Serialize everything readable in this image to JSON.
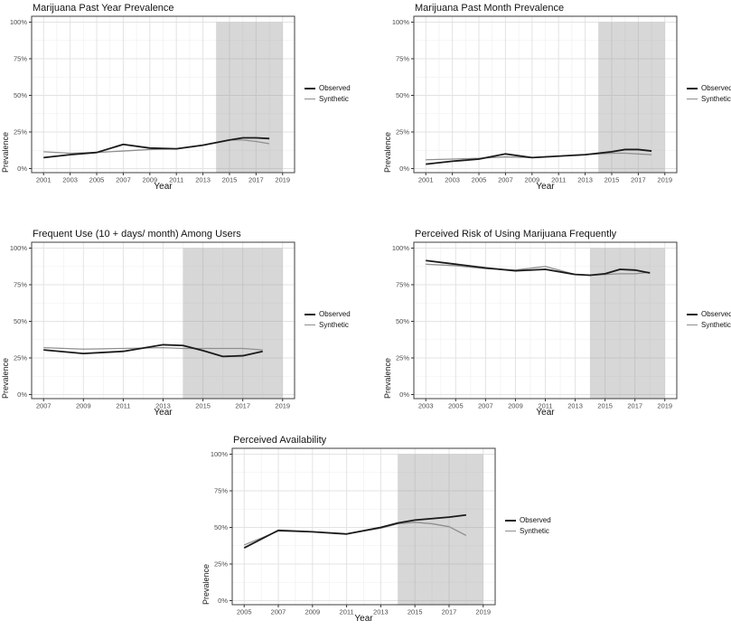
{
  "legend": {
    "observed": "Observed",
    "synthetic": "Synthetic"
  },
  "colors": {
    "observed_line": "#1a1a1a",
    "synthetic_line": "#8f8f8f",
    "shade_fill": "rgba(150,150,150,0.38)",
    "grid_major": "#e3e3e3",
    "grid_minor": "#f2f2f2",
    "panel_border": "#3c3c3c",
    "tick_label": "#4d4d4d"
  },
  "chart_data": [
    {
      "type": "line",
      "title": "Marijuana Past Year Prevalence",
      "xlabel": "Year",
      "ylabel": "Prevalence",
      "ylim": [
        0,
        100
      ],
      "yticks": [
        0,
        25,
        50,
        75,
        100
      ],
      "ytick_labels": [
        "0%",
        "25%",
        "50%",
        "75%",
        "100%"
      ],
      "xticks": [
        2001,
        2003,
        2005,
        2007,
        2009,
        2011,
        2013,
        2015,
        2017,
        2019
      ],
      "shaded_region": {
        "from": 2014,
        "to": 2019
      },
      "legend_position": "right",
      "grid": true,
      "x": [
        2001,
        2003,
        2005,
        2007,
        2009,
        2011,
        2013,
        2015,
        2016,
        2017,
        2018
      ],
      "series": [
        {
          "name": "Observed",
          "values": [
            7.5,
            9.5,
            11,
            16.5,
            14,
            13.5,
            16,
            19.5,
            21,
            21,
            20.5
          ]
        },
        {
          "name": "Synthetic",
          "values": [
            11.5,
            10.5,
            11,
            12,
            13,
            13.5,
            16,
            19.5,
            19.5,
            18.5,
            17
          ]
        }
      ]
    },
    {
      "type": "line",
      "title": "Marijuana Past Month Prevalence",
      "xlabel": "Year",
      "ylabel": "Prevalence",
      "ylim": [
        0,
        100
      ],
      "yticks": [
        0,
        25,
        50,
        75,
        100
      ],
      "ytick_labels": [
        "0%",
        "25%",
        "50%",
        "75%",
        "100%"
      ],
      "xticks": [
        2001,
        2003,
        2005,
        2007,
        2009,
        2011,
        2013,
        2015,
        2017,
        2019
      ],
      "shaded_region": {
        "from": 2014,
        "to": 2019
      },
      "legend_position": "right",
      "grid": true,
      "x": [
        2001,
        2003,
        2005,
        2007,
        2009,
        2011,
        2013,
        2015,
        2016,
        2017,
        2018
      ],
      "series": [
        {
          "name": "Observed",
          "values": [
            3,
            5,
            6.5,
            10,
            7.5,
            8.5,
            9.5,
            11.5,
            13,
            13,
            12
          ]
        },
        {
          "name": "Synthetic",
          "values": [
            6,
            6.5,
            7,
            8,
            7.5,
            8.5,
            9.5,
            10.5,
            10.5,
            10,
            9.5
          ]
        }
      ]
    },
    {
      "type": "line",
      "title": "Frequent Use (10 + days/ month) Among Users",
      "xlabel": "Year",
      "ylabel": "Prevalence",
      "ylim": [
        0,
        100
      ],
      "yticks": [
        0,
        25,
        50,
        75,
        100
      ],
      "ytick_labels": [
        "0%",
        "25%",
        "50%",
        "75%",
        "100%"
      ],
      "xticks": [
        2007,
        2009,
        2011,
        2013,
        2015,
        2017,
        2019
      ],
      "shaded_region": {
        "from": 2014,
        "to": 2019
      },
      "legend_position": "right",
      "grid": true,
      "x": [
        2007,
        2009,
        2011,
        2013,
        2014,
        2015,
        2016,
        2017,
        2018
      ],
      "series": [
        {
          "name": "Observed",
          "values": [
            30.5,
            28,
            29.5,
            34,
            33.5,
            30,
            26,
            26.5,
            29.5
          ]
        },
        {
          "name": "Synthetic",
          "values": [
            32,
            31,
            31.5,
            32,
            31.5,
            31.5,
            31.5,
            31.5,
            30.5
          ]
        }
      ]
    },
    {
      "type": "line",
      "title": "Perceived Risk of Using Marijuana Frequently",
      "xlabel": "Year",
      "ylabel": "Prevalence",
      "ylim": [
        0,
        100
      ],
      "yticks": [
        0,
        25,
        50,
        75,
        100
      ],
      "ytick_labels": [
        "0%",
        "25%",
        "50%",
        "75%",
        "100%"
      ],
      "xticks": [
        2003,
        2005,
        2007,
        2009,
        2011,
        2013,
        2015,
        2017,
        2019
      ],
      "shaded_region": {
        "from": 2014,
        "to": 2019
      },
      "legend_position": "right",
      "grid": true,
      "x": [
        2003,
        2005,
        2007,
        2009,
        2011,
        2013,
        2014,
        2015,
        2016,
        2017,
        2018
      ],
      "series": [
        {
          "name": "Observed",
          "values": [
            91.5,
            89,
            86.5,
            84.5,
            85.5,
            82,
            81.5,
            82.5,
            85.5,
            85,
            83
          ]
        },
        {
          "name": "Synthetic",
          "values": [
            89,
            88,
            86,
            85,
            87.5,
            82,
            81.5,
            82,
            82.5,
            82.5,
            83.5
          ]
        }
      ]
    },
    {
      "type": "line",
      "title": "Perceived Availability",
      "xlabel": "Year",
      "ylabel": "Prevalence",
      "ylim": [
        0,
        100
      ],
      "yticks": [
        0,
        25,
        50,
        75,
        100
      ],
      "ytick_labels": [
        "0%",
        "25%",
        "50%",
        "75%",
        "100%"
      ],
      "xticks": [
        2005,
        2007,
        2009,
        2011,
        2013,
        2015,
        2017,
        2019
      ],
      "shaded_region": {
        "from": 2014,
        "to": 2019
      },
      "legend_position": "right",
      "grid": true,
      "x": [
        2005,
        2007,
        2009,
        2011,
        2013,
        2014,
        2015,
        2016,
        2017,
        2018
      ],
      "series": [
        {
          "name": "Observed",
          "values": [
            36,
            48,
            47,
            45.5,
            50,
            53,
            55,
            56,
            57,
            58.5
          ]
        },
        {
          "name": "Synthetic",
          "values": [
            38,
            47.5,
            47,
            45.5,
            49.5,
            52.5,
            53.5,
            52.5,
            50.5,
            44.5
          ]
        }
      ]
    }
  ]
}
